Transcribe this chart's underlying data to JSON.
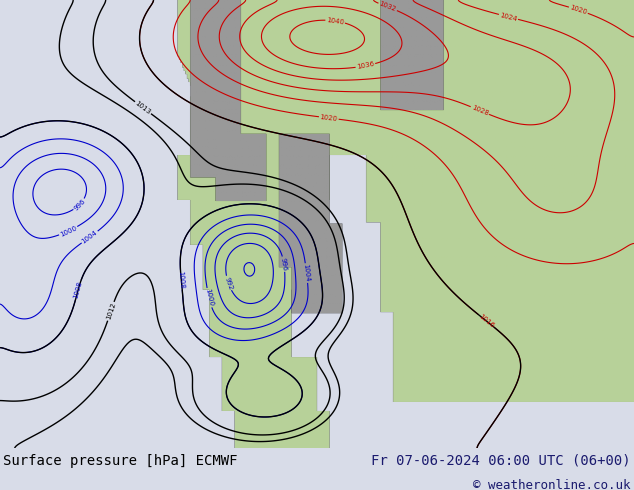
{
  "title_left": "Surface pressure [hPa] ECMWF",
  "title_right": "Fr 07-06-2024 06:00 UTC (06+00)",
  "copyright": "© weatheronline.co.uk",
  "bg_color": "#d8dce8",
  "land_green": [
    0.72,
    0.82,
    0.6,
    1.0
  ],
  "land_grey": [
    0.6,
    0.6,
    0.6,
    1.0
  ],
  "ocean_color": "#c8d0e0",
  "text_color_left": "#000000",
  "text_color_right": "#1a1a6e",
  "copyright_color": "#1a1a6e",
  "title_fontsize": 10,
  "copyright_fontsize": 9,
  "figwidth": 6.34,
  "figheight": 4.9,
  "dpi": 100,
  "red_color": "#cc0000",
  "blue_color": "#0000cc",
  "black_color": "#000000"
}
